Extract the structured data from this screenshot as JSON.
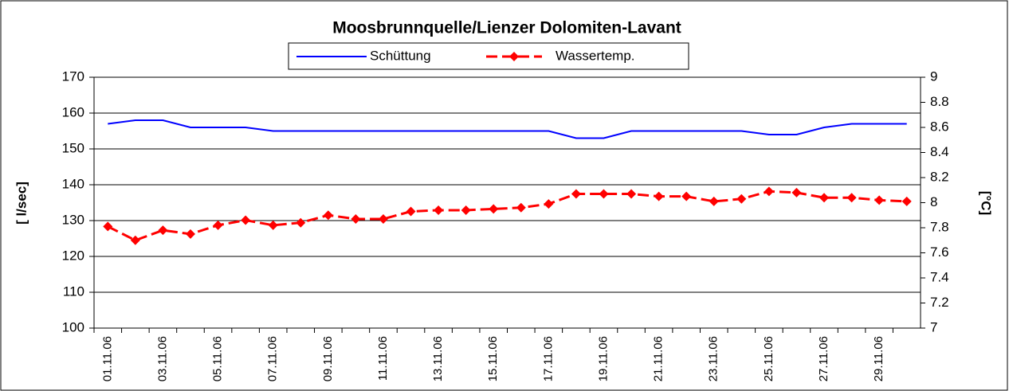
{
  "chart_data": {
    "type": "line",
    "title": "Moosbrunnquelle/Lienzer Dolomiten-Lavant",
    "categories": [
      "01.11.06",
      null,
      "03.11.06",
      null,
      "05.11.06",
      null,
      "07.11.06",
      null,
      "09.11.06",
      null,
      "11.11.06",
      null,
      "13.11.06",
      null,
      "15.11.06",
      null,
      "17.11.06",
      null,
      "19.11.06",
      null,
      "21.11.06",
      null,
      "23.11.06",
      null,
      "25.11.06",
      null,
      "27.11.06",
      null,
      "29.11.06",
      null
    ],
    "series": [
      {
        "name": "Schüttung",
        "color": "#0000ff",
        "values": [
          157,
          158,
          158,
          156,
          156,
          156,
          155,
          155,
          155,
          155,
          155,
          155,
          155,
          155,
          155,
          155,
          155,
          153,
          153,
          155,
          155,
          155,
          155,
          155,
          154,
          154,
          156,
          157,
          157,
          157
        ]
      },
      {
        "name": "Wassertemp.",
        "color": "#ff0000",
        "axis": "y2",
        "values": [
          7.81,
          7.7,
          7.78,
          7.75,
          7.82,
          7.86,
          7.82,
          7.84,
          7.9,
          7.87,
          7.87,
          7.93,
          7.94,
          7.94,
          7.95,
          7.96,
          7.99,
          8.07,
          8.07,
          8.07,
          8.05,
          8.05,
          8.01,
          8.03,
          8.09,
          8.08,
          8.04,
          8.04,
          8.02,
          8.01
        ]
      }
    ],
    "ylabel": "[ l/sec]",
    "y2label": "[°C]",
    "ylim": [
      100,
      170
    ],
    "yticks": [
      100,
      110,
      120,
      130,
      140,
      150,
      160,
      170
    ],
    "y2lim": [
      7,
      9
    ],
    "y2ticks": [
      7,
      7.2,
      7.4,
      7.6,
      7.8,
      8,
      8.2,
      8.4,
      8.6,
      8.8,
      9
    ],
    "grid": true
  }
}
